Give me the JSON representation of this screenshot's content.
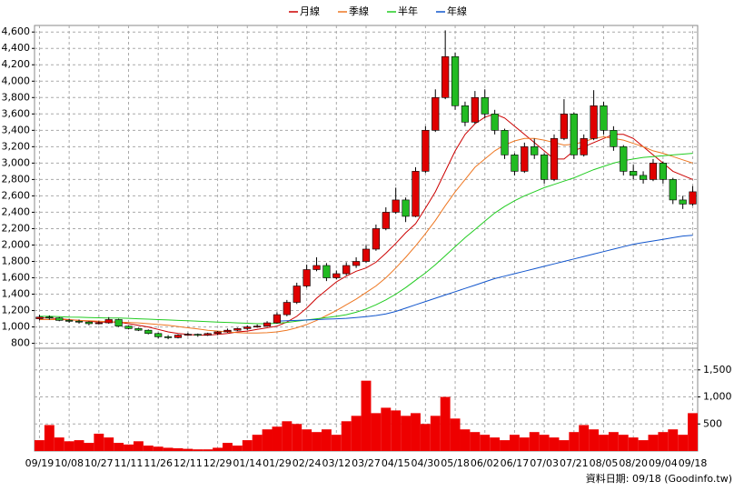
{
  "chart_data": [
    {
      "type": "candlestick",
      "categories": [
        "09/19",
        null,
        null,
        "10/08",
        null,
        null,
        "10/27",
        null,
        null,
        "11/11",
        null,
        null,
        "11/26",
        null,
        null,
        "12/11",
        null,
        null,
        "12/29",
        null,
        null,
        "01/14",
        null,
        null,
        "01/29",
        null,
        null,
        "02/24",
        null,
        null,
        "03/12",
        null,
        null,
        "03/27",
        null,
        null,
        "04/15",
        null,
        null,
        "04/30",
        null,
        null,
        "05/18",
        null,
        null,
        "06/02",
        null,
        null,
        "06/17",
        null,
        null,
        "07/03",
        null,
        null,
        "07/21",
        null,
        null,
        "08/05",
        null,
        null,
        "08/20",
        null,
        null,
        "09/04",
        null,
        null,
        "09/18"
      ],
      "open": [
        1100,
        1120,
        1110,
        1080,
        1070,
        1060,
        1040,
        1050,
        1090,
        1010,
        980,
        960,
        920,
        880,
        870,
        900,
        910,
        900,
        920,
        940,
        960,
        980,
        1000,
        1010,
        1050,
        1150,
        1300,
        1500,
        1700,
        1750,
        1600,
        1650,
        1750,
        1800,
        1950,
        2200,
        2400,
        2550,
        2350,
        2900,
        3400,
        3800,
        4300,
        3700,
        3500,
        3800,
        3600,
        3400,
        3100,
        2900,
        3200,
        3100,
        2800,
        3300,
        3600,
        3100,
        3300,
        3700,
        3400,
        3200,
        2900,
        2850,
        2800,
        3000,
        2800,
        2550,
        2500
      ],
      "high": [
        1150,
        1140,
        1120,
        1100,
        1090,
        1070,
        1070,
        1120,
        1100,
        1020,
        990,
        970,
        930,
        900,
        910,
        930,
        920,
        930,
        950,
        980,
        990,
        1020,
        1030,
        1070,
        1180,
        1330,
        1540,
        1760,
        1850,
        1780,
        1690,
        1790,
        1850,
        2000,
        2250,
        2460,
        2700,
        2580,
        2950,
        3450,
        3900,
        4620,
        4350,
        3750,
        3880,
        3900,
        3650,
        3420,
        3120,
        3250,
        3300,
        3120,
        3350,
        3780,
        3620,
        3350,
        3890,
        3750,
        3450,
        3220,
        2980,
        2900,
        3050,
        3020,
        2820,
        2600,
        2720
      ],
      "low": [
        1080,
        1090,
        1070,
        1050,
        1040,
        1020,
        1030,
        1040,
        1000,
        970,
        950,
        910,
        860,
        850,
        860,
        890,
        880,
        890,
        900,
        930,
        950,
        960,
        990,
        1000,
        1040,
        1130,
        1280,
        1480,
        1680,
        1560,
        1580,
        1630,
        1720,
        1780,
        1930,
        2180,
        2380,
        2280,
        2340,
        2880,
        3380,
        3780,
        3650,
        3450,
        3480,
        3550,
        3350,
        3050,
        2850,
        2880,
        3050,
        2750,
        2780,
        3280,
        3050,
        3080,
        3280,
        3350,
        3150,
        2850,
        2800,
        2750,
        2780,
        2750,
        2500,
        2440,
        2480
      ],
      "close": [
        1120,
        1110,
        1080,
        1070,
        1060,
        1040,
        1050,
        1090,
        1010,
        980,
        960,
        920,
        880,
        870,
        900,
        910,
        900,
        920,
        940,
        960,
        980,
        1000,
        1010,
        1050,
        1150,
        1300,
        1500,
        1700,
        1750,
        1600,
        1650,
        1750,
        1800,
        1950,
        2200,
        2400,
        2550,
        2350,
        2900,
        3400,
        3800,
        4300,
        3700,
        3500,
        3800,
        3600,
        3400,
        3100,
        2900,
        3200,
        3100,
        2800,
        3300,
        3600,
        3100,
        3300,
        3700,
        3400,
        3200,
        2900,
        2850,
        2800,
        3000,
        2800,
        2550,
        2500,
        2650
      ],
      "up_color": "#e00000",
      "down_color": "#22bb22",
      "series": [
        {
          "name": "月線",
          "color": "#cc0000",
          "values": [
            1110,
            1110,
            1100,
            1090,
            1080,
            1070,
            1060,
            1060,
            1060,
            1040,
            1020,
            1000,
            970,
            940,
            920,
            910,
            900,
            900,
            910,
            920,
            940,
            950,
            970,
            990,
            1010,
            1060,
            1130,
            1230,
            1350,
            1450,
            1550,
            1620,
            1680,
            1720,
            1790,
            1900,
            2020,
            2150,
            2260,
            2450,
            2650,
            2900,
            3150,
            3350,
            3480,
            3560,
            3600,
            3550,
            3450,
            3350,
            3250,
            3150,
            3050,
            3050,
            3150,
            3200,
            3250,
            3300,
            3350,
            3350,
            3300,
            3200,
            3100,
            3000,
            2900,
            2850,
            2800
          ]
        },
        {
          "name": "季線",
          "color": "#ee7722",
          "values": [
            1090,
            1090,
            1090,
            1085,
            1080,
            1075,
            1070,
            1065,
            1060,
            1055,
            1050,
            1040,
            1030,
            1020,
            1005,
            990,
            975,
            960,
            950,
            940,
            930,
            925,
            925,
            930,
            940,
            960,
            990,
            1030,
            1080,
            1140,
            1200,
            1270,
            1340,
            1420,
            1500,
            1600,
            1720,
            1850,
            1990,
            2140,
            2300,
            2480,
            2650,
            2800,
            2950,
            3050,
            3150,
            3220,
            3270,
            3300,
            3300,
            3280,
            3250,
            3220,
            3230,
            3260,
            3300,
            3320,
            3300,
            3280,
            3240,
            3200,
            3150,
            3120,
            3080,
            3040,
            3000
          ]
        },
        {
          "name": "半年",
          "color": "#22cc22",
          "values": [
            1130,
            1130,
            1125,
            1120,
            1118,
            1115,
            1112,
            1110,
            1108,
            1105,
            1100,
            1095,
            1090,
            1085,
            1080,
            1075,
            1070,
            1065,
            1060,
            1055,
            1050,
            1045,
            1040,
            1040,
            1045,
            1055,
            1070,
            1085,
            1100,
            1115,
            1130,
            1150,
            1180,
            1220,
            1270,
            1330,
            1400,
            1480,
            1570,
            1660,
            1760,
            1870,
            1980,
            2090,
            2190,
            2290,
            2390,
            2470,
            2540,
            2600,
            2650,
            2700,
            2740,
            2780,
            2820,
            2870,
            2920,
            2960,
            3000,
            3030,
            3050,
            3070,
            3080,
            3090,
            3100,
            3110,
            3120
          ]
        },
        {
          "name": "年線",
          "color": "#1155cc",
          "values": [
            null,
            null,
            null,
            null,
            null,
            null,
            null,
            null,
            null,
            null,
            null,
            null,
            null,
            null,
            null,
            null,
            null,
            null,
            null,
            null,
            null,
            null,
            null,
            null,
            1070,
            1075,
            1080,
            1085,
            1090,
            1095,
            1100,
            1105,
            1115,
            1125,
            1140,
            1160,
            1190,
            1230,
            1270,
            1310,
            1350,
            1390,
            1430,
            1470,
            1510,
            1550,
            1590,
            1620,
            1650,
            1680,
            1710,
            1740,
            1770,
            1800,
            1830,
            1860,
            1890,
            1920,
            1950,
            1980,
            2010,
            2030,
            2050,
            2070,
            2090,
            2110,
            2120
          ]
        }
      ],
      "ylim": [
        740,
        4680
      ],
      "yticks": [
        800,
        {
          "value": 1000,
          "label": "1,000"
        },
        {
          "value": 1200,
          "label": "1,200"
        },
        {
          "value": 1400,
          "label": "1,400"
        },
        {
          "value": 1600,
          "label": "1,600"
        },
        {
          "value": 1800,
          "label": "1,800"
        },
        {
          "value": 2000,
          "label": "2,000"
        },
        {
          "value": 2200,
          "label": "2,200"
        },
        {
          "value": 2400,
          "label": "2,400"
        },
        {
          "value": 2600,
          "label": "2,600"
        },
        {
          "value": 2800,
          "label": "2,800"
        },
        {
          "value": 3000,
          "label": "3,000"
        },
        {
          "value": 3200,
          "label": "3,200"
        },
        {
          "value": 3400,
          "label": "3,400"
        },
        {
          "value": 3600,
          "label": "3,600"
        },
        {
          "value": 3800,
          "label": "3,800"
        },
        {
          "value": 4000,
          "label": "4,000"
        },
        {
          "value": 4200,
          "label": "4,200"
        },
        {
          "value": 4400,
          "label": "4,400"
        },
        {
          "value": 4600,
          "label": "4,600"
        }
      ],
      "grid": true
    },
    {
      "type": "bar",
      "color": "#ee0000",
      "values": [
        200,
        480,
        250,
        180,
        200,
        150,
        320,
        250,
        150,
        120,
        180,
        100,
        80,
        60,
        50,
        40,
        30,
        30,
        60,
        150,
        100,
        200,
        300,
        400,
        450,
        550,
        500,
        400,
        350,
        400,
        300,
        550,
        650,
        1300,
        700,
        800,
        750,
        650,
        700,
        500,
        650,
        1000,
        600,
        400,
        350,
        300,
        250,
        200,
        300,
        250,
        350,
        300,
        250,
        200,
        350,
        480,
        400,
        300,
        350,
        300,
        250,
        200,
        300,
        350,
        400,
        300,
        700
      ],
      "ylim": [
        0,
        1900
      ],
      "yticks": [
        500,
        {
          "value": 1000,
          "label": "1,000"
        },
        {
          "value": 1500,
          "label": "1,500"
        }
      ],
      "grid": true,
      "source": "資料日期: 09/18 (Goodinfo.tw)"
    }
  ]
}
